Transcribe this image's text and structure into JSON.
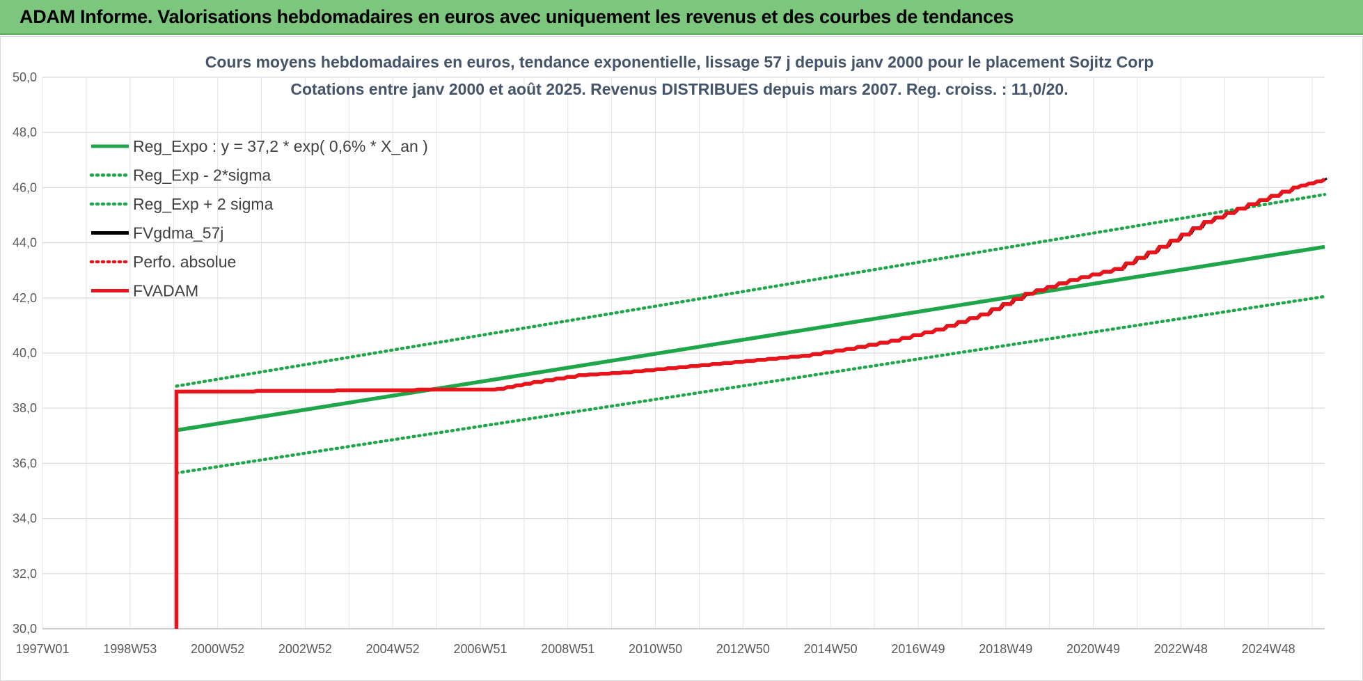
{
  "header": {
    "title": "ADAM Informe. Valorisations hebdomadaires en euros avec uniquement les revenus et des courbes de tendances"
  },
  "chart_data": {
    "type": "line",
    "title": "Cours moyens hebdomadaires en euros, tendance exponentielle, lissage 57 j depuis janv 2000 pour le placement Sojitz Corp",
    "subtitle": "Cotations entre janv 2000 et août 2025.  Revenus DISTRIBUES depuis mars 2007. Reg. croiss. : 11,0/20.",
    "xlabel": "",
    "ylabel": "",
    "ylim": [
      30,
      50
    ],
    "y_ticks": [
      "30,0",
      "32,0",
      "34,0",
      "36,0",
      "38,0",
      "40,0",
      "42,0",
      "44,0",
      "46,0",
      "48,0",
      "50,0"
    ],
    "x_tick_labels": [
      "1997W01",
      "1998W53",
      "2000W52",
      "2002W52",
      "2004W52",
      "2006W51",
      "2008W51",
      "2010W50",
      "2012W50",
      "2014W50",
      "2016W49",
      "2018W49",
      "2020W49",
      "2022W48",
      "2024W48"
    ],
    "xlim": [
      1997.0,
      2025.7
    ],
    "grid": true,
    "legend_position": "top-left",
    "colors": {
      "green": "#1fa64a",
      "red": "#e8141b",
      "black": "#000000"
    },
    "series": [
      {
        "name": "Reg_Expo : y = 37,2 * exp( 0,6% *  X_an )",
        "style": "solid",
        "color": "#1fa64a",
        "x": [
          2000.0,
          2025.7
        ],
        "y": [
          37.2,
          43.85
        ]
      },
      {
        "name": "Reg_Exp - 2*sigma",
        "style": "dotted",
        "color": "#1fa64a",
        "x": [
          2000.0,
          2025.7
        ],
        "y": [
          35.65,
          42.05
        ]
      },
      {
        "name": "Reg_Exp + 2 sigma",
        "style": "dotted",
        "color": "#1fa64a",
        "x": [
          2000.0,
          2025.7
        ],
        "y": [
          38.8,
          45.75
        ]
      },
      {
        "name": "FVgdma_57j",
        "style": "solid",
        "color": "#000000",
        "x": [
          2007.2,
          2008.0,
          2009.0,
          2010.0,
          2011.0,
          2012.0,
          2013.0,
          2014.0,
          2015.0,
          2016.0,
          2017.0,
          2018.0,
          2019.0,
          2020.0,
          2021.0,
          2022.0,
          2023.0,
          2024.0,
          2025.0,
          2025.7
        ],
        "y": [
          38.7,
          38.95,
          39.2,
          39.3,
          39.45,
          39.6,
          39.75,
          39.9,
          40.15,
          40.45,
          40.85,
          41.4,
          42.15,
          42.65,
          43.05,
          43.85,
          44.75,
          45.4,
          46.0,
          46.3
        ]
      },
      {
        "name": "Perfo. absolue",
        "style": "dotted",
        "color": "#e8141b",
        "x": [],
        "y": []
      },
      {
        "name": "FVADAM",
        "style": "solid",
        "color": "#e8141b",
        "x": [
          2000.0,
          2000.0,
          2007.2,
          2008.0,
          2009.0,
          2010.0,
          2011.0,
          2012.0,
          2013.0,
          2014.0,
          2015.0,
          2016.0,
          2017.0,
          2018.0,
          2019.0,
          2020.0,
          2021.0,
          2022.0,
          2023.0,
          2024.0,
          2025.0,
          2025.7
        ],
        "y": [
          30.0,
          38.6,
          38.7,
          38.95,
          39.2,
          39.3,
          39.45,
          39.6,
          39.75,
          39.9,
          40.15,
          40.45,
          40.85,
          41.4,
          42.15,
          42.65,
          43.05,
          43.85,
          44.75,
          45.4,
          46.0,
          46.3
        ]
      }
    ]
  }
}
